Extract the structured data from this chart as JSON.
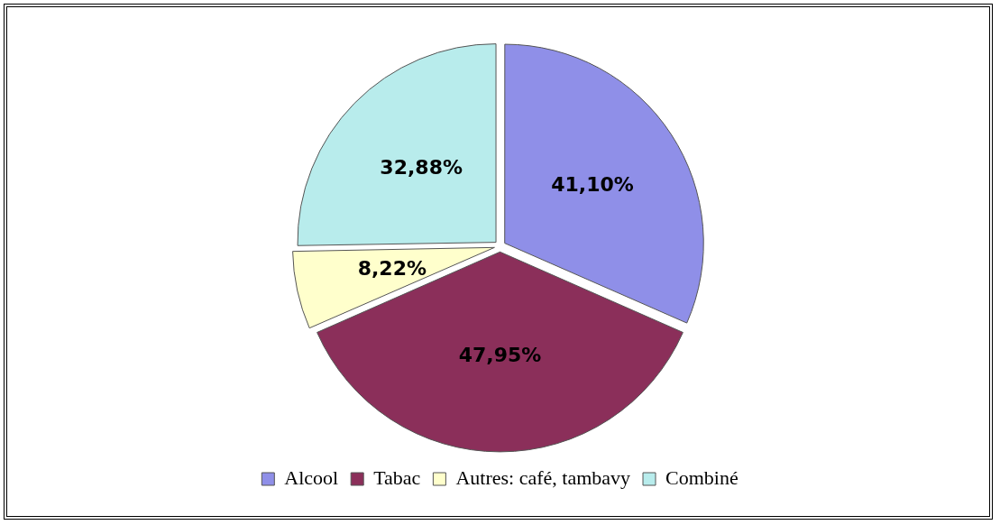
{
  "chart_data": {
    "type": "pie",
    "categories": [
      "Alcool",
      "Tabac",
      "Autres: café, tambavy",
      "Combiné"
    ],
    "values": [
      41.1,
      47.95,
      8.22,
      32.88
    ],
    "colors": [
      "#8f8fe8",
      "#8b2f5a",
      "#ffffcc",
      "#b8ecec"
    ],
    "value_labels": [
      "41,10%",
      "47,95%",
      "8,22%",
      "32,88%"
    ],
    "legend": "bottom"
  }
}
